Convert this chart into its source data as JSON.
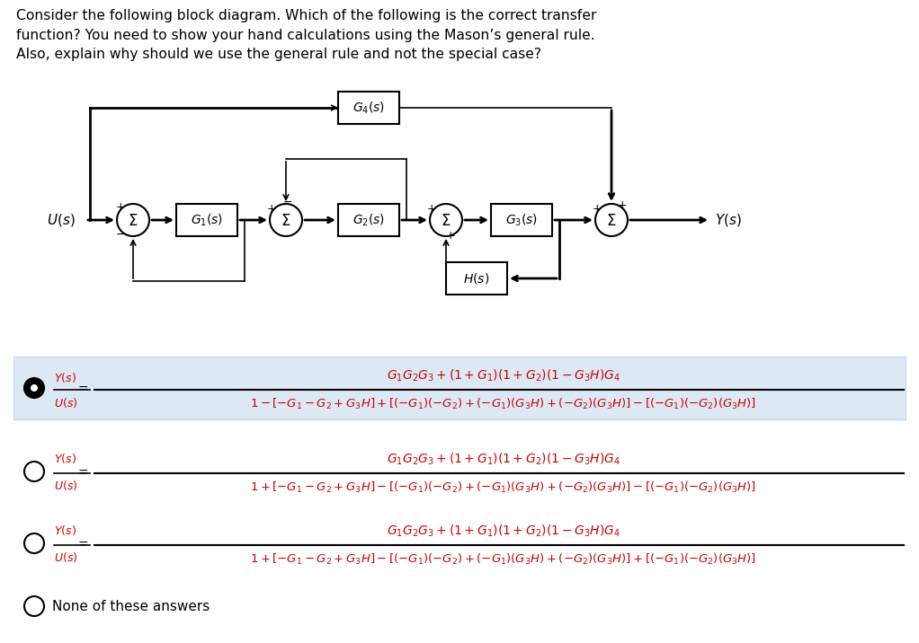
{
  "title_text": "Consider the following block diagram. Which of the following is the correct transfer\nfunction? You need to show your hand calculations using the Mason’s general rule.\nAlso, explain why should we use the general rule and not the special case?",
  "bg_color": "#ffffff",
  "option1_bg": "#dce9f5",
  "answer_color": "#cc0000",
  "text_color": "#000000",
  "option4_text": "None of these answers",
  "num_text": "G_1G_2G_3 + (1 + G_1)(1 + G_2)(1 - G_3H)G_4",
  "opt1_den": "1 - [-G_1 - G_2 + G_3H]+[(-G_1)(-G_2) + (-G_1)(G_3H) + (-G_2)(G_3H)] - [(-G_1)(-G_2)(G_3H)]",
  "opt2_den": "1 + [-G_1 - G_2 + G_3H]-[(-G_1)(-G_2) + (-G_1)(G_3H) + (-G_2)(G_3H)] - [(-G_1)(-G_2)(G_3H)]",
  "opt3_den": "1 + [-G_1 - G_2 + G_3H]-[(-G_1)(-G_2) + (-G_1)(G_3H) + (-G_2)(G_3H)] + [(-G_1)(-G_2)(G_3H)]"
}
